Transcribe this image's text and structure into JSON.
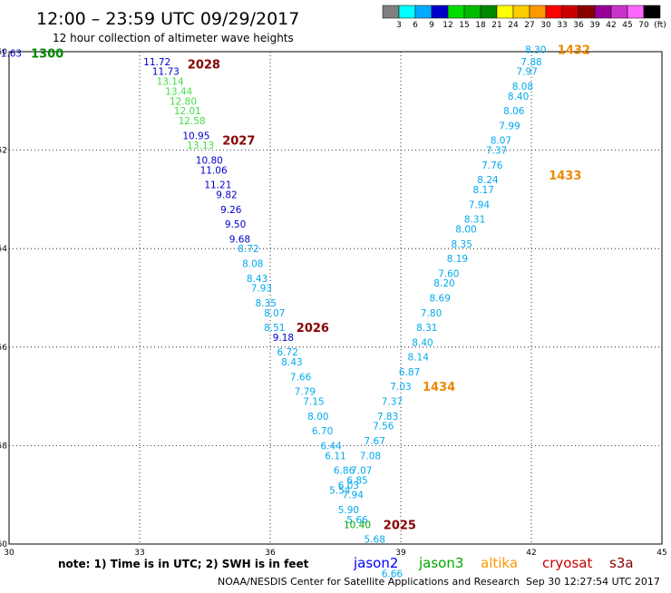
{
  "header": {
    "title": "12:00 – 23:59 UTC 09/29/2017",
    "subtitle": "12 hour collection of altimeter wave heights"
  },
  "color_scale": {
    "colors": [
      "#808080",
      "#00ffff",
      "#00aaff",
      "#0000cc",
      "#00dd00",
      "#00bb00",
      "#008800",
      "#ffff00",
      "#ffcc00",
      "#ff9900",
      "#ff0000",
      "#cc0000",
      "#880000",
      "#990099",
      "#cc33cc",
      "#ff66ff",
      "#000000"
    ],
    "labels": [
      "3",
      "6",
      "9",
      "12",
      "15",
      "18",
      "21",
      "24",
      "27",
      "30",
      "33",
      "36",
      "39",
      "42",
      "45",
      "70",
      "(ft)"
    ]
  },
  "chart_data": {
    "type": "scatter",
    "title": "12:00 – 23:59 UTC 09/29/2017",
    "xlim": [
      30,
      45
    ],
    "ylim": [
      -60,
      -50
    ],
    "x_ticks": [
      "30",
      "33",
      "36",
      "39",
      "42",
      "45"
    ],
    "y_ticks": [
      "-50",
      "-52",
      "-54",
      "-56",
      "-58",
      "-60"
    ],
    "series": [
      {
        "name": "jason2",
        "color": "#0000ff"
      },
      {
        "name": "jason3",
        "color": "#00aa00"
      },
      {
        "name": "altika",
        "color": "#ff9900"
      },
      {
        "name": "cryosat",
        "color": "#cc0000"
      },
      {
        "name": "s3a",
        "color": "#880000"
      }
    ],
    "points": [
      {
        "x": 30.05,
        "y": -50.03,
        "v": "1.63",
        "c": "#0000cc"
      },
      {
        "x": 33.4,
        "y": -50.2,
        "v": "11.72",
        "c": "#0000cc"
      },
      {
        "x": 33.6,
        "y": -50.4,
        "v": "11.73",
        "c": "#0000cc"
      },
      {
        "x": 33.7,
        "y": -50.6,
        "v": "13.14",
        "c": "#44dd44"
      },
      {
        "x": 33.9,
        "y": -50.8,
        "v": "13.44",
        "c": "#44dd44"
      },
      {
        "x": 34.0,
        "y": -51.0,
        "v": "12.80",
        "c": "#44dd44"
      },
      {
        "x": 34.1,
        "y": -51.2,
        "v": "12.01",
        "c": "#44dd44"
      },
      {
        "x": 34.2,
        "y": -51.4,
        "v": "12.58",
        "c": "#44dd44"
      },
      {
        "x": 34.3,
        "y": -51.7,
        "v": "10.95",
        "c": "#0000cc"
      },
      {
        "x": 34.4,
        "y": -51.9,
        "v": "13.13",
        "c": "#44dd44"
      },
      {
        "x": 34.6,
        "y": -52.2,
        "v": "10.80",
        "c": "#0000cc"
      },
      {
        "x": 34.7,
        "y": -52.4,
        "v": "11.06",
        "c": "#0000cc"
      },
      {
        "x": 34.8,
        "y": -52.7,
        "v": "11.21",
        "c": "#0000cc"
      },
      {
        "x": 35.0,
        "y": -52.9,
        "v": "9.82",
        "c": "#0000cc"
      },
      {
        "x": 35.1,
        "y": -53.2,
        "v": "9.26",
        "c": "#0000cc"
      },
      {
        "x": 35.2,
        "y": -53.5,
        "v": "9.50",
        "c": "#0000cc"
      },
      {
        "x": 35.3,
        "y": -53.8,
        "v": "9.68",
        "c": "#0000cc"
      },
      {
        "x": 35.5,
        "y": -54.0,
        "v": "8.72",
        "c": "#00aaee"
      },
      {
        "x": 35.6,
        "y": -54.3,
        "v": "8.08",
        "c": "#00aaee"
      },
      {
        "x": 35.7,
        "y": -54.6,
        "v": "8.43",
        "c": "#00aaee"
      },
      {
        "x": 35.8,
        "y": -54.8,
        "v": "7.93",
        "c": "#00aaee"
      },
      {
        "x": 35.9,
        "y": -55.1,
        "v": "8.35",
        "c": "#00aaee"
      },
      {
        "x": 36.1,
        "y": -55.3,
        "v": "8.07",
        "c": "#00aaee"
      },
      {
        "x": 36.1,
        "y": -55.6,
        "v": "8.51",
        "c": "#00aaee"
      },
      {
        "x": 36.3,
        "y": -55.8,
        "v": "9.18",
        "c": "#0000cc"
      },
      {
        "x": 36.4,
        "y": -56.1,
        "v": "6.72",
        "c": "#00aaee"
      },
      {
        "x": 36.5,
        "y": -56.3,
        "v": "8.43",
        "c": "#00aaee"
      },
      {
        "x": 36.7,
        "y": -56.6,
        "v": "7.66",
        "c": "#00aaee"
      },
      {
        "x": 36.8,
        "y": -56.9,
        "v": "7.79",
        "c": "#00aaee"
      },
      {
        "x": 37.0,
        "y": -57.1,
        "v": "7.15",
        "c": "#00aaee"
      },
      {
        "x": 37.1,
        "y": -57.4,
        "v": "8.00",
        "c": "#00aaee"
      },
      {
        "x": 37.2,
        "y": -57.7,
        "v": "6.70",
        "c": "#00aaee"
      },
      {
        "x": 37.4,
        "y": -58.0,
        "v": "6.44",
        "c": "#00aaee"
      },
      {
        "x": 37.5,
        "y": -58.2,
        "v": "6.11",
        "c": "#00aaee"
      },
      {
        "x": 37.7,
        "y": -58.5,
        "v": "6.86",
        "c": "#00aaee"
      },
      {
        "x": 37.8,
        "y": -58.8,
        "v": "6.03",
        "c": "#00aaee"
      },
      {
        "x": 37.9,
        "y": -59.0,
        "v": "7.94",
        "c": "#00aaee"
      },
      {
        "x": 37.8,
        "y": -59.3,
        "v": "5.90",
        "c": "#00aaee"
      },
      {
        "x": 38.0,
        "y": -59.5,
        "v": "5.66",
        "c": "#00aaee"
      },
      {
        "x": 38.0,
        "y": -59.6,
        "v": "10.40",
        "c": "#00aa00"
      },
      {
        "x": 38.4,
        "y": -59.9,
        "v": "5.68",
        "c": "#00aaee"
      },
      {
        "x": 38.8,
        "y": -60.6,
        "v": "6.66",
        "c": "#00aaee"
      },
      {
        "x": 37.6,
        "y": -58.9,
        "v": "5.54",
        "c": "#00aaee"
      },
      {
        "x": 38.0,
        "y": -58.7,
        "v": "6.85",
        "c": "#00aaee"
      },
      {
        "x": 38.1,
        "y": -58.5,
        "v": "7.07",
        "c": "#00aaee"
      },
      {
        "x": 38.3,
        "y": -58.2,
        "v": "7.08",
        "c": "#00aaee"
      },
      {
        "x": 38.4,
        "y": -57.9,
        "v": "7.67",
        "c": "#00aaee"
      },
      {
        "x": 38.6,
        "y": -57.6,
        "v": "7.56",
        "c": "#00aaee"
      },
      {
        "x": 38.7,
        "y": -57.4,
        "v": "7.83",
        "c": "#00aaee"
      },
      {
        "x": 38.8,
        "y": -57.1,
        "v": "7.37",
        "c": "#00aaee"
      },
      {
        "x": 39.0,
        "y": -56.8,
        "v": "7.03",
        "c": "#00aaee"
      },
      {
        "x": 39.2,
        "y": -56.5,
        "v": "6.87",
        "c": "#00aaee"
      },
      {
        "x": 39.4,
        "y": -56.2,
        "v": "8.14",
        "c": "#00aaee"
      },
      {
        "x": 39.5,
        "y": -55.9,
        "v": "8.40",
        "c": "#00aaee"
      },
      {
        "x": 39.6,
        "y": -55.6,
        "v": "8.31",
        "c": "#00aaee"
      },
      {
        "x": 39.7,
        "y": -55.3,
        "v": "7.80",
        "c": "#00aaee"
      },
      {
        "x": 39.9,
        "y": -55.0,
        "v": "8.69",
        "c": "#00aaee"
      },
      {
        "x": 40.0,
        "y": -54.7,
        "v": "8.20",
        "c": "#00aaee"
      },
      {
        "x": 40.1,
        "y": -54.5,
        "v": "7.60",
        "c": "#00aaee"
      },
      {
        "x": 40.3,
        "y": -54.2,
        "v": "8.19",
        "c": "#00aaee"
      },
      {
        "x": 40.4,
        "y": -53.9,
        "v": "8.35",
        "c": "#00aaee"
      },
      {
        "x": 40.5,
        "y": -53.6,
        "v": "8.00",
        "c": "#00aaee"
      },
      {
        "x": 40.7,
        "y": -53.4,
        "v": "8.31",
        "c": "#00aaee"
      },
      {
        "x": 40.8,
        "y": -53.1,
        "v": "7.94",
        "c": "#00aaee"
      },
      {
        "x": 40.9,
        "y": -52.8,
        "v": "8.17",
        "c": "#00aaee"
      },
      {
        "x": 41.0,
        "y": -52.6,
        "v": "8.24",
        "c": "#00aaee"
      },
      {
        "x": 41.1,
        "y": -52.3,
        "v": "7.76",
        "c": "#00aaee"
      },
      {
        "x": 41.2,
        "y": -52.0,
        "v": "7.37",
        "c": "#00aaee"
      },
      {
        "x": 41.3,
        "y": -51.8,
        "v": "8.07",
        "c": "#00aaee"
      },
      {
        "x": 41.5,
        "y": -51.5,
        "v": "7.99",
        "c": "#00aaee"
      },
      {
        "x": 41.6,
        "y": -51.2,
        "v": "8.06",
        "c": "#00aaee"
      },
      {
        "x": 41.7,
        "y": -50.9,
        "v": "8.40",
        "c": "#00aaee"
      },
      {
        "x": 41.8,
        "y": -50.7,
        "v": "8.08",
        "c": "#00aaee"
      },
      {
        "x": 41.9,
        "y": -50.4,
        "v": "7.97",
        "c": "#00aaee"
      },
      {
        "x": 42.0,
        "y": -50.2,
        "v": "7.88",
        "c": "#00aaee"
      },
      {
        "x": 42.1,
        "y": -49.95,
        "v": "8.30",
        "c": "#00aaee"
      }
    ],
    "annotations": [
      {
        "text": "1300",
        "x": 30.5,
        "y": -50.03,
        "c": "#008800"
      },
      {
        "text": "2028",
        "x": 34.1,
        "y": -50.25,
        "c": "#880000"
      },
      {
        "text": "2027",
        "x": 34.9,
        "y": -51.8,
        "c": "#880000"
      },
      {
        "text": "2026",
        "x": 36.6,
        "y": -55.6,
        "c": "#880000"
      },
      {
        "text": "2025",
        "x": 38.6,
        "y": -59.6,
        "c": "#880000"
      },
      {
        "text": "1432",
        "x": 42.6,
        "y": -49.95,
        "c": "#ee8800"
      },
      {
        "text": "1433",
        "x": 42.4,
        "y": -52.5,
        "c": "#ee8800"
      },
      {
        "text": "1434",
        "x": 39.5,
        "y": -56.8,
        "c": "#ee8800"
      }
    ]
  },
  "footer": {
    "note": "note: 1) Time is in UTC; 2) SWH is in feet",
    "credit": "NOAA/NESDIS Center for Satellite Applications and Research",
    "timestamp": "Sep 30 12:27:54 UTC 2017"
  }
}
